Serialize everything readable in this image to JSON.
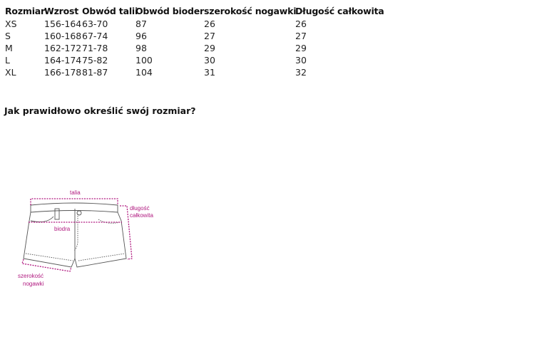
{
  "table": {
    "headers": [
      "Rozmiar",
      "Wzrost",
      "Obwód talii",
      "Obwód bioder",
      "szerokość nogawki",
      "Długość całkowita"
    ],
    "rows": [
      [
        "XS",
        "156-164",
        "63-70",
        "87",
        "26",
        "26"
      ],
      [
        "S",
        "160-168",
        "67-74",
        "96",
        "27",
        "27"
      ],
      [
        "M",
        "162-172",
        "71-78",
        "98",
        "29",
        "29"
      ],
      [
        "L",
        "164-174",
        "75-82",
        "100",
        "30",
        "30"
      ],
      [
        "XL",
        "166-178",
        "81-87",
        "104",
        "31",
        "32"
      ]
    ]
  },
  "heading": "Jak prawidłowo określić swój rozmiar?",
  "diagram": {
    "accent_color": "#b0187f",
    "labels": {
      "waist": "talia",
      "length_1": "długość",
      "length_2": "całkowita",
      "hips": "biodra",
      "leg_1": "szerokość",
      "leg_2": "nogawki"
    }
  }
}
